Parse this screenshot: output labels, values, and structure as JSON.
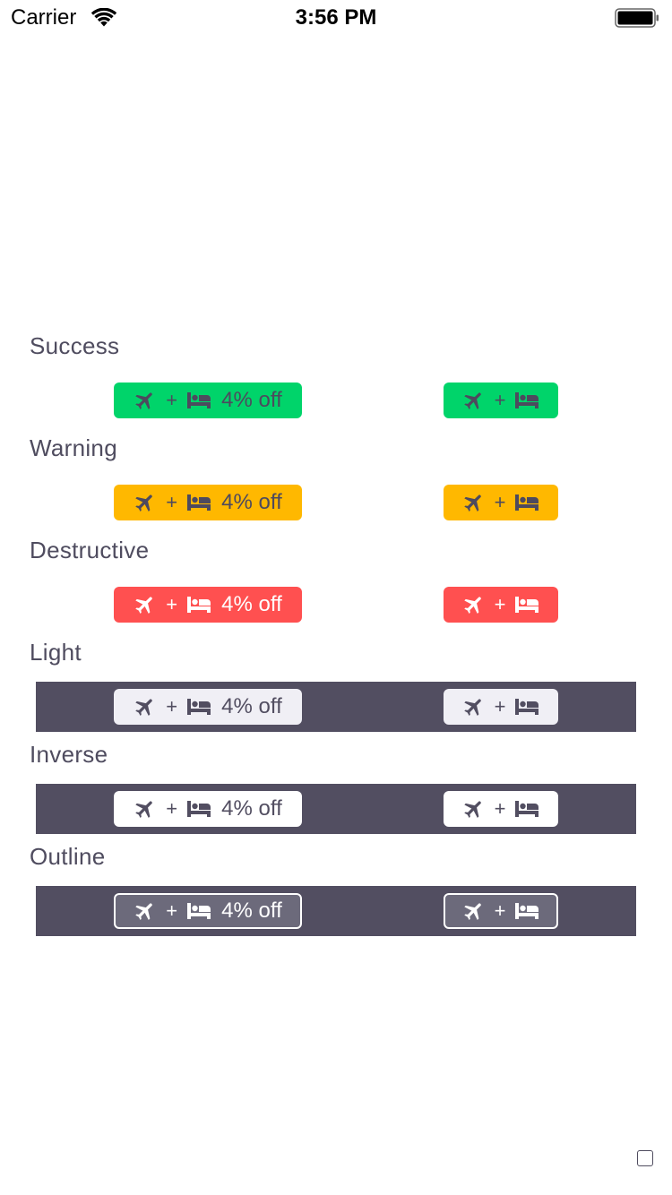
{
  "status_bar": {
    "carrier": "Carrier",
    "time": "3:56 PM"
  },
  "badge": {
    "plus": "+",
    "discount": "4% off",
    "icons": [
      "airplane-icon",
      "bed-icon"
    ]
  },
  "sections": [
    {
      "title": "Success",
      "style": "success",
      "color": "#00d46a"
    },
    {
      "title": "Warning",
      "style": "warning",
      "color": "#ffb800"
    },
    {
      "title": "Destructive",
      "style": "destructive",
      "color": "#ff5050"
    },
    {
      "title": "Light",
      "style": "light",
      "color": "#f0eff5",
      "strip_color": "#524e61"
    },
    {
      "title": "Inverse",
      "style": "inverse",
      "color": "#ffffff",
      "strip_color": "#524e61"
    },
    {
      "title": "Outline",
      "style": "outline",
      "color": "#ffffff",
      "strip_color": "#524e61"
    }
  ]
}
